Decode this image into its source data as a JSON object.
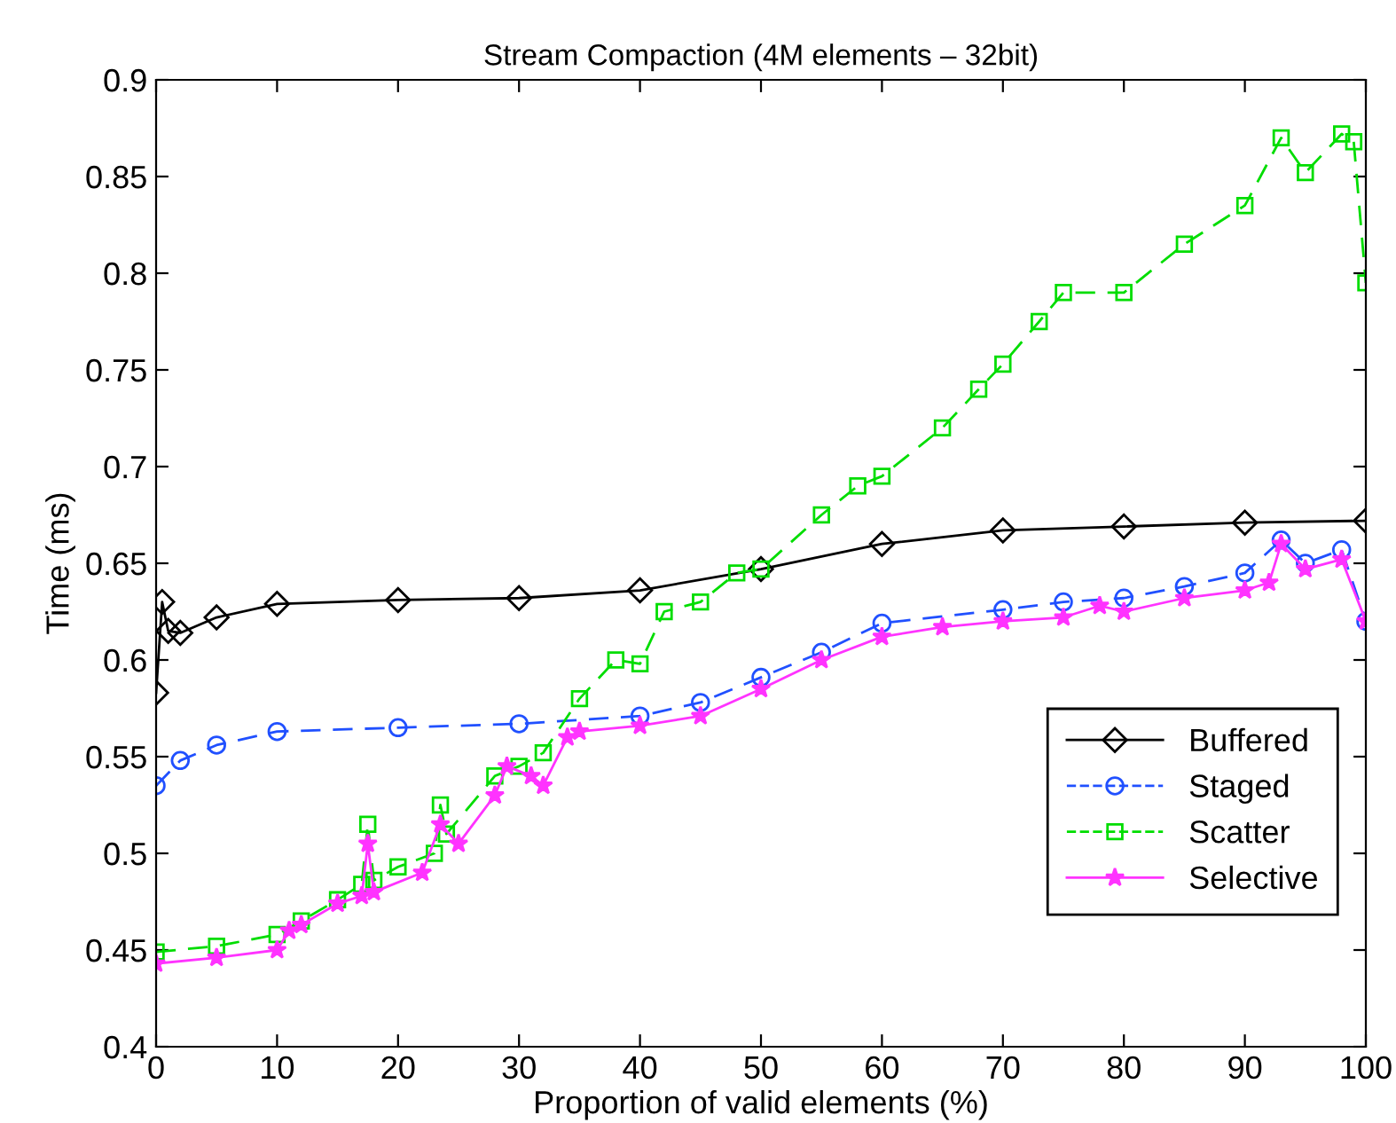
{
  "chart_data": {
    "type": "line",
    "title": "Stream Compaction (4M elements – 32bit)",
    "xlabel": "Proportion of valid elements (%)",
    "ylabel": "Time (ms)",
    "xlim": [
      0,
      100
    ],
    "xticks": [
      0,
      10,
      20,
      30,
      40,
      50,
      60,
      70,
      80,
      90,
      100
    ],
    "ylim": [
      0.4,
      0.9
    ],
    "yticks": [
      0.4,
      0.45,
      0.5,
      0.55,
      0.6,
      0.65,
      0.7,
      0.75,
      0.8,
      0.85,
      0.9
    ],
    "grid": false,
    "legend": "lower right",
    "series": [
      {
        "name": "Buffered",
        "color": "#000000",
        "marker": "diamond",
        "line_style": "solid",
        "x": [
          0,
          0.5,
          1,
          2,
          5,
          10,
          20,
          30,
          40,
          50,
          60,
          70,
          80,
          90,
          100
        ],
        "values": [
          0.583,
          0.63,
          0.615,
          0.614,
          0.622,
          0.629,
          0.631,
          0.632,
          0.636,
          0.647,
          0.66,
          0.667,
          0.669,
          0.671,
          0.672
        ]
      },
      {
        "name": "Staged",
        "color": "#2050ff",
        "marker": "circle",
        "line_style": "dashed",
        "x": [
          0,
          2,
          5,
          10,
          20,
          30,
          40,
          45,
          50,
          55,
          60,
          70,
          75,
          80,
          85,
          90,
          93,
          95,
          98,
          100
        ],
        "values": [
          0.535,
          0.548,
          0.556,
          0.563,
          0.565,
          0.567,
          0.571,
          0.578,
          0.591,
          0.604,
          0.619,
          0.626,
          0.63,
          0.632,
          0.638,
          0.645,
          0.662,
          0.65,
          0.657,
          0.62
        ]
      },
      {
        "name": "Scatter",
        "color": "#00dd00",
        "marker": "square",
        "line_style": "dashed",
        "x": [
          0,
          5,
          10,
          12,
          15,
          17,
          17.5,
          18,
          20,
          23,
          23.5,
          24,
          28,
          30,
          32,
          35,
          38,
          40,
          42,
          45,
          48,
          50,
          55,
          58,
          60,
          65,
          68,
          70,
          73,
          75,
          80,
          85,
          90,
          93,
          95,
          98,
          99,
          100
        ],
        "values": [
          0.449,
          0.452,
          0.458,
          0.465,
          0.476,
          0.484,
          0.515,
          0.486,
          0.493,
          0.5,
          0.525,
          0.51,
          0.54,
          0.545,
          0.552,
          0.58,
          0.6,
          0.598,
          0.625,
          0.63,
          0.645,
          0.647,
          0.675,
          0.69,
          0.695,
          0.72,
          0.74,
          0.753,
          0.775,
          0.79,
          0.79,
          0.815,
          0.835,
          0.87,
          0.852,
          0.872,
          0.868,
          0.795
        ]
      },
      {
        "name": "Selective",
        "color": "#ff33ff",
        "marker": "star",
        "line_style": "solid",
        "x": [
          0,
          5,
          10,
          11,
          12,
          15,
          17,
          17.5,
          18,
          22,
          23.5,
          25,
          28,
          29,
          31,
          32,
          34,
          35,
          40,
          45,
          50,
          55,
          60,
          65,
          70,
          75,
          78,
          80,
          85,
          90,
          92,
          93,
          95,
          98,
          100
        ],
        "values": [
          0.443,
          0.446,
          0.45,
          0.46,
          0.463,
          0.474,
          0.478,
          0.505,
          0.48,
          0.49,
          0.515,
          0.505,
          0.53,
          0.545,
          0.54,
          0.535,
          0.56,
          0.563,
          0.566,
          0.571,
          0.585,
          0.6,
          0.612,
          0.617,
          0.62,
          0.622,
          0.628,
          0.625,
          0.632,
          0.636,
          0.64,
          0.66,
          0.647,
          0.652,
          0.62
        ]
      }
    ]
  }
}
